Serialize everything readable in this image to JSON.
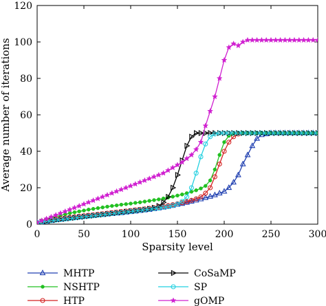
{
  "chart_data": {
    "type": "line",
    "title": "",
    "xlabel": "Sparsity level",
    "ylabel": "Average number of iterations",
    "xlim": [
      0,
      300
    ],
    "ylim": [
      0,
      120
    ],
    "xticks": [
      0,
      50,
      100,
      150,
      200,
      250,
      300
    ],
    "yticks": [
      0,
      20,
      40,
      60,
      80,
      100,
      120
    ],
    "grid": false,
    "legend_position": "below",
    "series": [
      {
        "name": "MHTP",
        "color": "#1f3fb0",
        "marker": "triangle-up",
        "x": [
          0,
          5,
          10,
          15,
          20,
          25,
          30,
          35,
          40,
          45,
          50,
          55,
          60,
          65,
          70,
          75,
          80,
          85,
          90,
          95,
          100,
          105,
          110,
          115,
          120,
          125,
          130,
          135,
          140,
          145,
          150,
          155,
          160,
          165,
          170,
          175,
          180,
          185,
          190,
          195,
          200,
          205,
          210,
          215,
          220,
          225,
          230,
          235,
          240,
          245,
          250,
          255,
          260,
          265,
          270,
          275,
          280,
          285,
          290,
          295,
          300
        ],
        "y": [
          1,
          1.2,
          1.5,
          1.9,
          2.3,
          2.6,
          3,
          3.3,
          3.6,
          3.9,
          4.2,
          4.5,
          4.7,
          5,
          5.2,
          5.5,
          5.7,
          6,
          6.2,
          6.5,
          6.8,
          7.1,
          7.4,
          7.7,
          8,
          8.4,
          8.8,
          9.2,
          9.7,
          10.2,
          10.8,
          11.3,
          11.9,
          12.5,
          13.1,
          13.8,
          14.5,
          15.2,
          16,
          17,
          18,
          20,
          23,
          27,
          33,
          38,
          43,
          47,
          49,
          49.5,
          50,
          50,
          50,
          50,
          50,
          50,
          50,
          50,
          50,
          50,
          50
        ]
      },
      {
        "name": "NSHTP",
        "color": "#22c022",
        "marker": "dot",
        "x": [
          0,
          5,
          10,
          15,
          20,
          25,
          30,
          35,
          40,
          45,
          50,
          55,
          60,
          65,
          70,
          75,
          80,
          85,
          90,
          95,
          100,
          105,
          110,
          115,
          120,
          125,
          130,
          135,
          140,
          145,
          150,
          155,
          160,
          165,
          170,
          175,
          180,
          185,
          190,
          195,
          200,
          205,
          210,
          215,
          220,
          225,
          230,
          235,
          240,
          245,
          250,
          255,
          260,
          265,
          270,
          275,
          280,
          285,
          290,
          295,
          300
        ],
        "y": [
          1,
          2,
          2.8,
          3.5,
          4.2,
          4.8,
          5.4,
          6,
          6.5,
          7,
          7.5,
          8,
          8.4,
          8.8,
          9.2,
          9.6,
          10,
          10.3,
          10.7,
          11,
          11.3,
          11.7,
          12,
          12.4,
          12.8,
          13.2,
          13.6,
          14.1,
          14.6,
          15.1,
          15.7,
          16.3,
          17,
          17.8,
          18.6,
          19.6,
          21,
          24,
          30,
          38,
          45,
          48.5,
          49.5,
          50,
          50,
          50,
          50,
          50,
          50,
          50,
          50,
          50,
          50,
          50,
          50,
          50,
          50,
          50,
          50,
          50,
          50
        ]
      },
      {
        "name": "HTP",
        "color": "#d42020",
        "marker": "circle",
        "x": [
          0,
          5,
          10,
          15,
          20,
          25,
          30,
          35,
          40,
          45,
          50,
          55,
          60,
          65,
          70,
          75,
          80,
          85,
          90,
          95,
          100,
          105,
          110,
          115,
          120,
          125,
          130,
          135,
          140,
          145,
          150,
          155,
          160,
          165,
          170,
          175,
          180,
          185,
          190,
          195,
          200,
          205,
          210,
          215,
          220,
          225,
          230,
          235,
          240,
          245,
          250,
          255,
          260,
          265,
          270,
          275,
          280,
          285,
          290,
          295,
          300
        ],
        "y": [
          1,
          1.5,
          2,
          2.4,
          2.8,
          3.1,
          3.4,
          3.7,
          4,
          4.3,
          4.6,
          4.9,
          5.1,
          5.4,
          5.7,
          6,
          6.3,
          6.6,
          6.9,
          7.2,
          7.5,
          7.8,
          8.1,
          8.4,
          8.7,
          9,
          9.4,
          9.8,
          10.2,
          10.7,
          11.2,
          11.8,
          12.4,
          13.1,
          13.9,
          15,
          17,
          20,
          26,
          33,
          40,
          45,
          48,
          49.5,
          50,
          50,
          50,
          50,
          50,
          50,
          50,
          50,
          50,
          50,
          50,
          50,
          50,
          50,
          50,
          50,
          50
        ]
      },
      {
        "name": "CoSaMP",
        "color": "#000000",
        "marker": "triangle-right",
        "x": [
          0,
          5,
          10,
          15,
          20,
          25,
          30,
          35,
          40,
          45,
          50,
          55,
          60,
          65,
          70,
          75,
          80,
          85,
          90,
          95,
          100,
          105,
          110,
          115,
          120,
          125,
          130,
          135,
          140,
          145,
          150,
          155,
          160,
          165,
          170,
          175,
          180,
          185,
          190,
          195,
          200,
          205,
          210,
          215,
          220,
          225,
          230,
          235,
          240,
          245,
          250,
          255,
          260,
          265,
          270,
          275,
          280,
          285,
          290,
          295,
          300
        ],
        "y": [
          1,
          1.3,
          1.6,
          2,
          2.3,
          2.6,
          2.9,
          3.2,
          3.5,
          3.8,
          4.1,
          4.4,
          4.7,
          5,
          5.3,
          5.6,
          5.9,
          6.2,
          6.5,
          6.8,
          7.1,
          7.4,
          7.7,
          8,
          8.4,
          9,
          10,
          12,
          15,
          20,
          27,
          35,
          43,
          48,
          50,
          50,
          50,
          50,
          50,
          50,
          50,
          50,
          50,
          50,
          50,
          50,
          50,
          50,
          50,
          50,
          50,
          50,
          50,
          50,
          50,
          50,
          50,
          50,
          50,
          50,
          50
        ]
      },
      {
        "name": "SP",
        "color": "#22d0e0",
        "marker": "circle",
        "x": [
          0,
          5,
          10,
          15,
          20,
          25,
          30,
          35,
          40,
          45,
          50,
          55,
          60,
          65,
          70,
          75,
          80,
          85,
          90,
          95,
          100,
          105,
          110,
          115,
          120,
          125,
          130,
          135,
          140,
          145,
          150,
          155,
          160,
          165,
          170,
          175,
          180,
          185,
          190,
          195,
          200,
          205,
          210,
          215,
          220,
          225,
          230,
          235,
          240,
          245,
          250,
          255,
          260,
          265,
          270,
          275,
          280,
          285,
          290,
          295,
          300
        ],
        "y": [
          1,
          1.3,
          1.6,
          1.9,
          2.2,
          2.5,
          2.8,
          3.1,
          3.4,
          3.7,
          4,
          4.3,
          4.6,
          4.9,
          5.2,
          5.5,
          5.8,
          6.1,
          6.4,
          6.7,
          7,
          7.3,
          7.6,
          7.9,
          8.2,
          8.5,
          8.8,
          9.2,
          9.6,
          10.2,
          11,
          12.5,
          15,
          20,
          28,
          37,
          44,
          48,
          49.5,
          50,
          50,
          50,
          50,
          50,
          50,
          50,
          50,
          50,
          50,
          50,
          50,
          50,
          50,
          50,
          50,
          50,
          50,
          50,
          50,
          50,
          50
        ]
      },
      {
        "name": "gOMP",
        "color": "#d020d0",
        "marker": "star",
        "x": [
          0,
          5,
          10,
          15,
          20,
          25,
          30,
          35,
          40,
          45,
          50,
          55,
          60,
          65,
          70,
          75,
          80,
          85,
          90,
          95,
          100,
          105,
          110,
          115,
          120,
          125,
          130,
          135,
          140,
          145,
          150,
          155,
          160,
          165,
          170,
          175,
          180,
          185,
          190,
          195,
          200,
          205,
          210,
          215,
          220,
          225,
          230,
          235,
          240,
          245,
          250,
          255,
          260,
          265,
          270,
          275,
          280,
          285,
          290,
          295,
          300
        ],
        "y": [
          1,
          2,
          3,
          4,
          5,
          6,
          7,
          8,
          9,
          10,
          11,
          12,
          13,
          14,
          15,
          16,
          17,
          18,
          19,
          20,
          21,
          22,
          23,
          24,
          25,
          26,
          27,
          28,
          29.5,
          31,
          32.5,
          34,
          36,
          38,
          41,
          45,
          54,
          62,
          70,
          80,
          90,
          97,
          99,
          98,
          100,
          101,
          101,
          101,
          101,
          101,
          101,
          101,
          101,
          101,
          101,
          101,
          101,
          101,
          101,
          101,
          101
        ]
      }
    ]
  }
}
